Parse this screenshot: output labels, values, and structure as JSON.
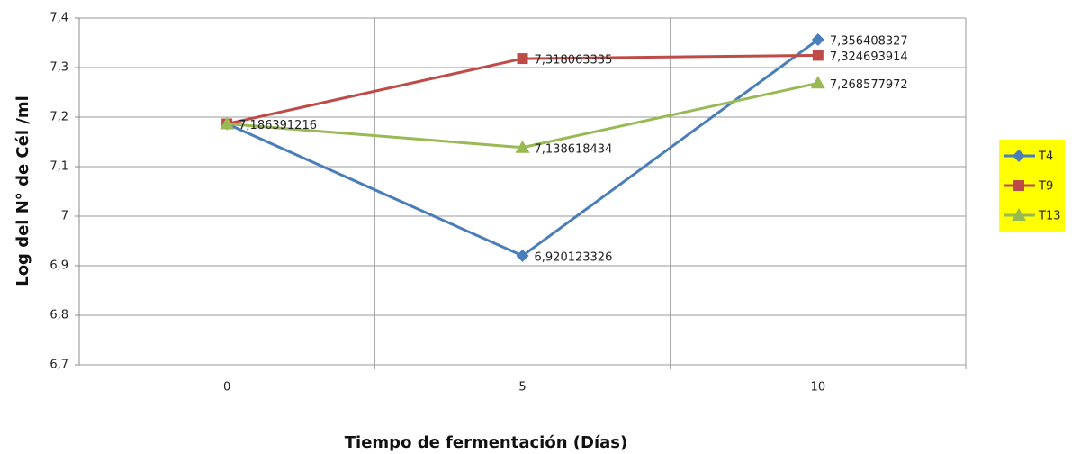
{
  "chart_data": {
    "type": "line",
    "x_label": "Tiempo de fermentación (Días)",
    "y_label": "Log  del N° de Cél /ml",
    "categories": [
      "0",
      "5",
      "10"
    ],
    "series": [
      {
        "name": "T4",
        "color": "#4a7ebb",
        "marker": "diamond",
        "values": [
          7.186391216,
          6.920123326,
          7.356408327
        ],
        "value_labels": [
          null,
          "6,920123326",
          "7,356408327"
        ]
      },
      {
        "name": "T9",
        "color": "#be4b48",
        "marker": "square",
        "values": [
          7.186391216,
          7.318063335,
          7.324693914
        ],
        "value_labels": [
          null,
          "7,318063335",
          "7,324693914"
        ]
      },
      {
        "name": "T13",
        "color": "#98b954",
        "marker": "triangle",
        "values": [
          7.186391216,
          7.138618434,
          7.268577972
        ],
        "value_labels": [
          "7,186391216",
          "7,138618434",
          "7,268577972"
        ]
      }
    ],
    "ylim": [
      6.7,
      7.4
    ],
    "yticks": [
      {
        "value": 6.7,
        "label": "6,7"
      },
      {
        "value": 6.8,
        "label": "6,8"
      },
      {
        "value": 6.9,
        "label": "6,9"
      },
      7,
      {
        "value": 7.1,
        "label": "7,1"
      },
      {
        "value": 7.2,
        "label": "7,2"
      },
      {
        "value": 7.3,
        "label": "7,3"
      },
      {
        "value": 7.4,
        "label": "7,4"
      }
    ],
    "grid": true,
    "legend": "right"
  }
}
